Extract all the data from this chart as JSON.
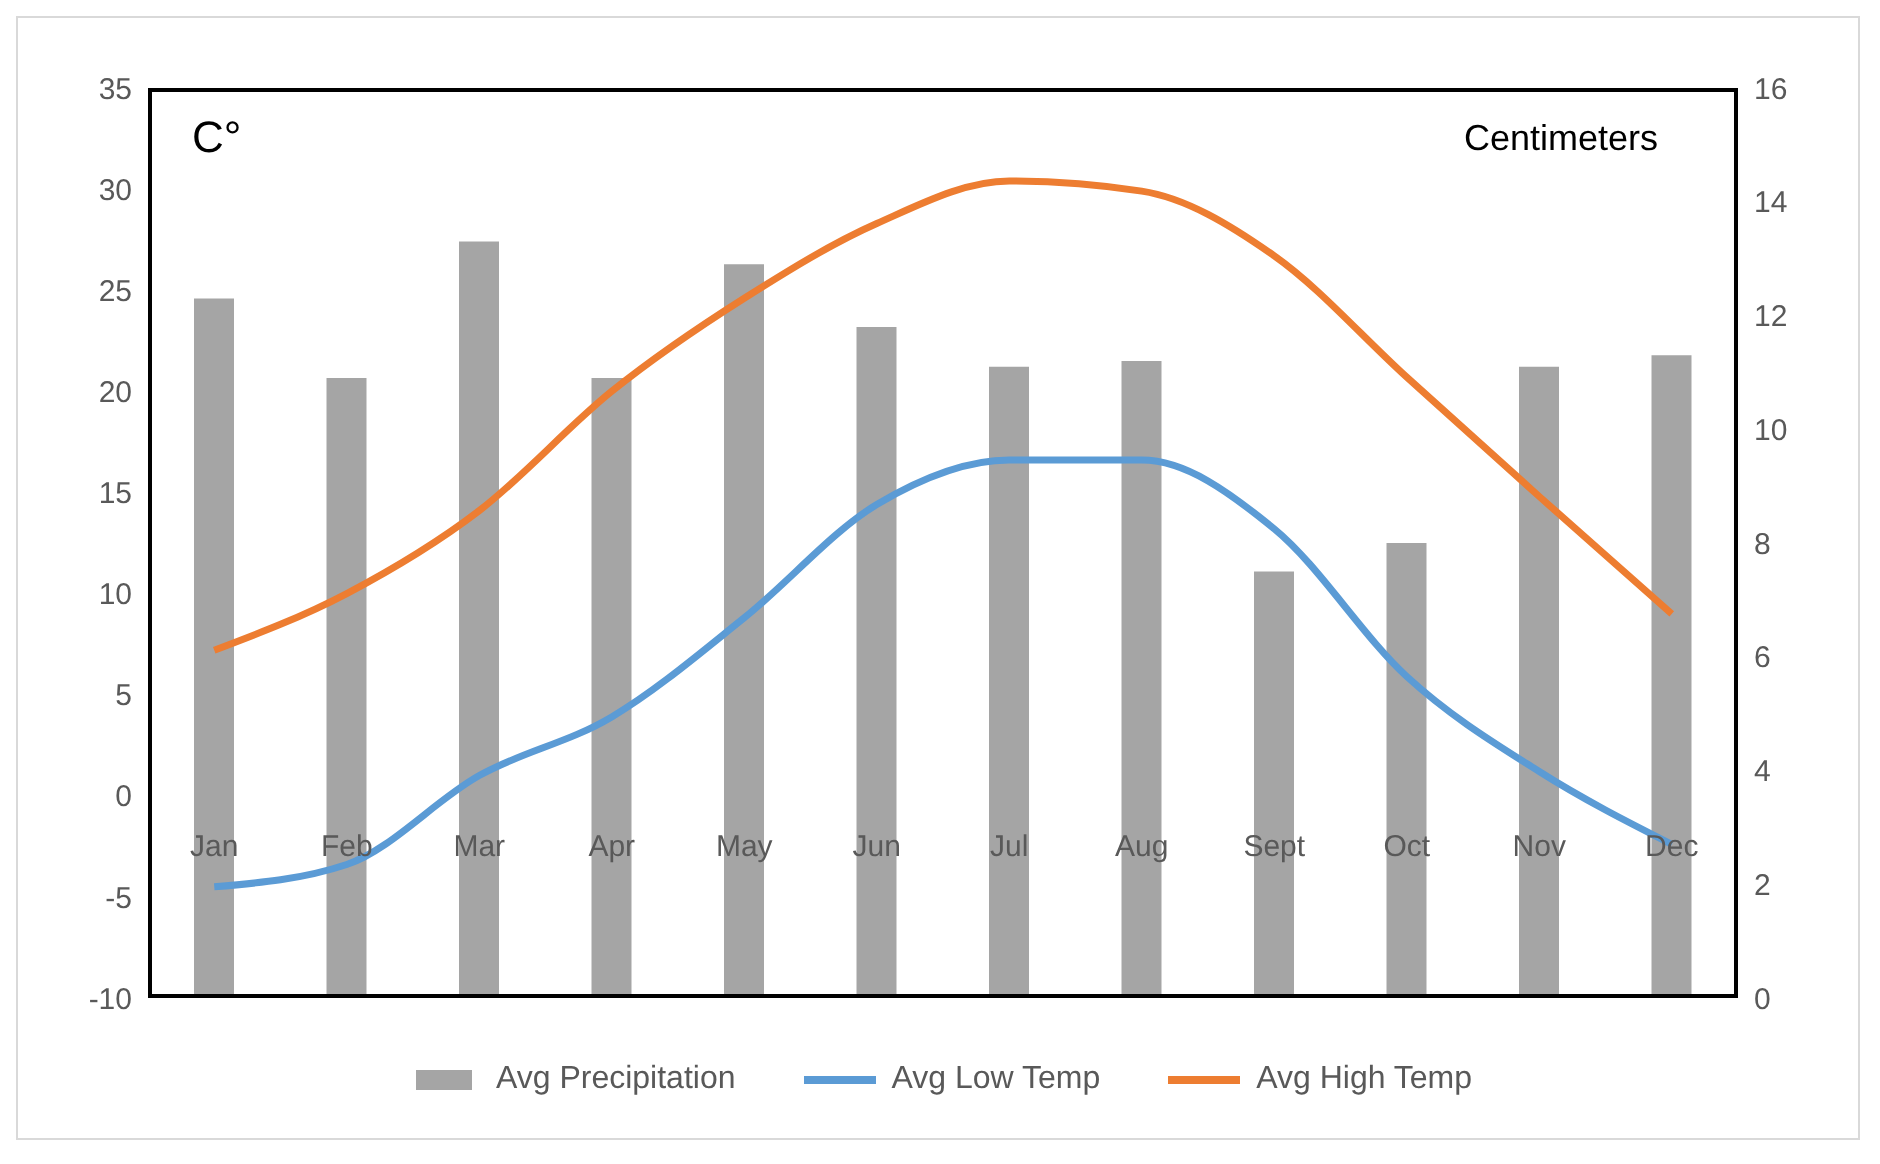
{
  "chart_data": {
    "type": "bar",
    "ylabel": "C°",
    "y2label": "Centimeters",
    "categories": [
      "Jan",
      "Feb",
      "Mar",
      "Apr",
      "May",
      "Jun",
      "Jul",
      "Aug",
      "Sept",
      "Oct",
      "Nov",
      "Dec"
    ],
    "series": [
      {
        "name": "Avg Precipitation",
        "color": "#a5a5a5",
        "axis": "y2",
        "values": [
          12.3,
          10.9,
          13.3,
          10.9,
          12.9,
          11.8,
          11.1,
          11.2,
          7.5,
          8.0,
          11.1,
          11.3
        ]
      },
      {
        "name": "Avg Low Temp",
        "type": "line",
        "color": "#5b9bd5",
        "values": [
          -4.5,
          -3.4,
          1.0,
          3.9,
          8.8,
          14.4,
          16.6,
          16.6,
          13.2,
          5.9,
          1.2,
          -2.4
        ]
      },
      {
        "name": "Avg High Temp",
        "type": "line",
        "color": "#ed7d31",
        "values": [
          7.2,
          10.0,
          14.1,
          20.0,
          24.6,
          28.3,
          30.4,
          29.9,
          26.7,
          20.7,
          14.8,
          9.0
        ]
      }
    ],
    "ylim": [
      -10,
      35
    ],
    "yticks": [
      -10,
      -5,
      0,
      5,
      10,
      15,
      20,
      25,
      30,
      35
    ],
    "y2lim": [
      0,
      16
    ],
    "y2ticks": [
      0,
      2,
      4,
      6,
      8,
      10,
      12,
      14,
      16
    ],
    "legend": "bottom",
    "marker": "none",
    "line_style": "solid"
  }
}
